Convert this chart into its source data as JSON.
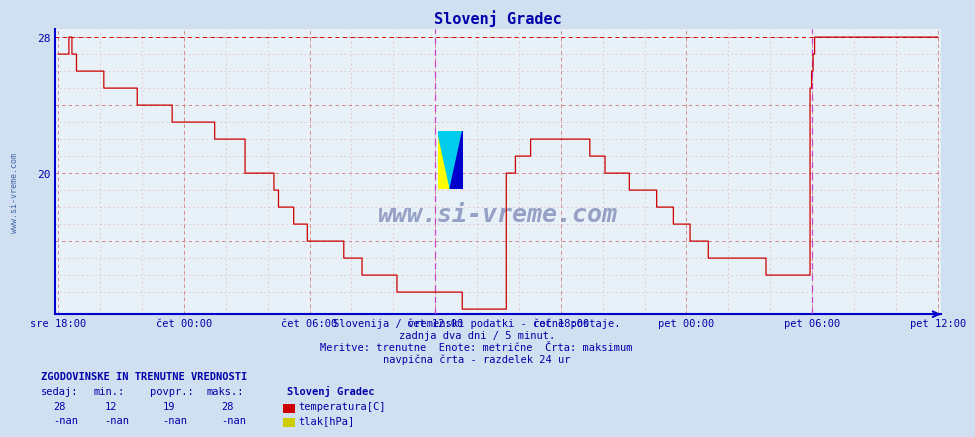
{
  "title": "Slovenj Gradec",
  "bg_color": "#d0e0f0",
  "plot_bg_color": "#e8f0f8",
  "line_color": "#cc0000",
  "axis_color": "#0000cc",
  "text_color": "#0000aa",
  "ymin": 12,
  "ymax": 28,
  "subtitle1": "Slovenija / vremenski podatki - ročne postaje.",
  "subtitle2": "zadnja dva dni / 5 minut.",
  "subtitle3": "Meritve: trenutne  Enote: metrične  Črta: maksimum",
  "subtitle4": "navpična črta - razdelek 24 ur",
  "footer_title": "ZGODOVINSKE IN TRENUTNE VREDNOSTI",
  "col_sedaj": "sedaj:",
  "col_min": "min.:",
  "col_povpr": "povpr.:",
  "col_maks": "maks.:",
  "station": "Slovenj Gradec",
  "val_sedaj": "28",
  "val_min": "12",
  "val_povpr": "19",
  "val_maks": "28",
  "val_sedaj2": "-nan",
  "val_min2": "-nan",
  "val_povpr2": "-nan",
  "val_maks2": "-nan",
  "legend1_color": "#cc0000",
  "legend1_label": "temperatura[C]",
  "legend2_color": "#cccc00",
  "legend2_label": "tlak[hPa]",
  "watermark": "www.si-vreme.com",
  "sidewatermark": "www.si-vreme.com",
  "tick_labels": [
    "sre 18:00",
    "čet 00:00",
    "čet 06:00",
    "čet 12:00",
    "čet 18:00",
    "pet 00:00",
    "pet 06:00",
    "pet 12:00"
  ],
  "n_points": 576,
  "temperature_data": [
    27,
    27,
    27,
    27,
    27,
    27,
    27,
    28,
    28,
    27,
    27,
    27,
    26,
    26,
    26,
    26,
    26,
    26,
    26,
    26,
    26,
    26,
    26,
    26,
    26,
    26,
    26,
    26,
    26,
    26,
    25,
    25,
    25,
    25,
    25,
    25,
    25,
    25,
    25,
    25,
    25,
    25,
    25,
    25,
    25,
    25,
    25,
    25,
    25,
    25,
    25,
    25,
    24,
    24,
    24,
    24,
    24,
    24,
    24,
    24,
    24,
    24,
    24,
    24,
    24,
    24,
    24,
    24,
    24,
    24,
    24,
    24,
    24,
    24,
    24,
    23,
    23,
    23,
    23,
    23,
    23,
    23,
    23,
    23,
    23,
    23,
    23,
    23,
    23,
    23,
    23,
    23,
    23,
    23,
    23,
    23,
    23,
    23,
    23,
    23,
    23,
    23,
    23,
    22,
    22,
    22,
    22,
    22,
    22,
    22,
    22,
    22,
    22,
    22,
    22,
    22,
    22,
    22,
    22,
    22,
    22,
    22,
    22,
    20,
    20,
    20,
    20,
    20,
    20,
    20,
    20,
    20,
    20,
    20,
    20,
    20,
    20,
    20,
    20,
    20,
    20,
    20,
    19,
    19,
    19,
    18,
    18,
    18,
    18,
    18,
    18,
    18,
    18,
    18,
    18,
    17,
    17,
    17,
    17,
    17,
    17,
    17,
    17,
    17,
    16,
    16,
    16,
    16,
    16,
    16,
    16,
    16,
    16,
    16,
    16,
    16,
    16,
    16,
    16,
    16,
    16,
    16,
    16,
    16,
    16,
    16,
    16,
    16,
    15,
    15,
    15,
    15,
    15,
    15,
    15,
    15,
    15,
    15,
    15,
    15,
    14,
    14,
    14,
    14,
    14,
    14,
    14,
    14,
    14,
    14,
    14,
    14,
    14,
    14,
    14,
    14,
    14,
    14,
    14,
    14,
    14,
    14,
    14,
    13,
    13,
    13,
    13,
    13,
    13,
    13,
    13,
    13,
    13,
    13,
    13,
    13,
    13,
    13,
    13,
    13,
    13,
    13,
    13,
    13,
    13,
    13,
    13,
    13,
    13,
    13,
    13,
    13,
    13,
    13,
    13,
    13,
    13,
    13,
    13,
    13,
    13,
    13,
    13,
    13,
    13,
    13,
    12,
    12,
    12,
    12,
    12,
    12,
    12,
    12,
    12,
    12,
    12,
    12,
    12,
    12,
    12,
    12,
    12,
    12,
    12,
    12,
    12,
    12,
    12,
    12,
    12,
    12,
    12,
    12,
    12,
    20,
    20,
    20,
    20,
    20,
    20,
    21,
    21,
    21,
    21,
    21,
    21,
    21,
    21,
    21,
    21,
    22,
    22,
    22,
    22,
    22,
    22,
    22,
    22,
    22,
    22,
    22,
    22,
    22,
    22,
    22,
    22,
    22,
    22,
    22,
    22,
    22,
    22,
    22,
    22,
    22,
    22,
    22,
    22,
    22,
    22,
    22,
    22,
    22,
    22,
    22,
    22,
    22,
    22,
    22,
    21,
    21,
    21,
    21,
    21,
    21,
    21,
    21,
    21,
    21,
    20,
    20,
    20,
    20,
    20,
    20,
    20,
    20,
    20,
    20,
    20,
    20,
    20,
    20,
    20,
    20,
    19,
    19,
    19,
    19,
    19,
    19,
    19,
    19,
    19,
    19,
    19,
    19,
    19,
    19,
    19,
    19,
    19,
    19,
    18,
    18,
    18,
    18,
    18,
    18,
    18,
    18,
    18,
    18,
    18,
    17,
    17,
    17,
    17,
    17,
    17,
    17,
    17,
    17,
    17,
    17,
    16,
    16,
    16,
    16,
    16,
    16,
    16,
    16,
    16,
    16,
    16,
    16,
    15,
    15,
    15,
    15,
    15,
    15,
    15,
    15,
    15,
    15,
    15,
    15,
    15,
    15,
    15,
    15,
    15,
    15,
    15,
    15,
    15,
    15,
    15,
    15,
    15,
    15,
    15,
    15,
    15,
    15,
    15,
    15,
    15,
    15,
    15,
    15,
    15,
    15,
    14,
    14,
    14,
    14,
    14,
    14,
    14,
    14,
    14,
    14,
    14,
    14,
    14,
    14,
    14,
    14,
    14,
    14,
    14,
    14,
    14,
    14,
    14,
    14,
    14,
    14,
    14,
    14,
    14,
    25,
    26,
    27,
    28,
    28,
    28,
    28,
    28,
    28,
    28,
    28,
    28,
    28,
    28,
    28,
    28,
    28,
    28,
    28,
    28,
    28,
    28,
    28,
    28,
    28,
    28,
    28,
    28,
    28,
    28,
    28,
    28,
    28,
    28,
    28,
    28,
    28,
    28,
    28,
    28,
    28,
    28,
    28,
    28,
    28,
    28,
    28,
    28,
    28,
    28,
    28,
    28,
    28,
    28,
    28,
    28,
    28,
    28,
    28,
    28,
    28,
    28,
    28,
    28,
    28,
    28,
    28,
    28,
    28,
    28,
    28,
    28,
    28,
    28,
    28,
    28,
    28,
    28,
    28,
    28,
    28,
    28,
    28,
    28,
    28
  ]
}
